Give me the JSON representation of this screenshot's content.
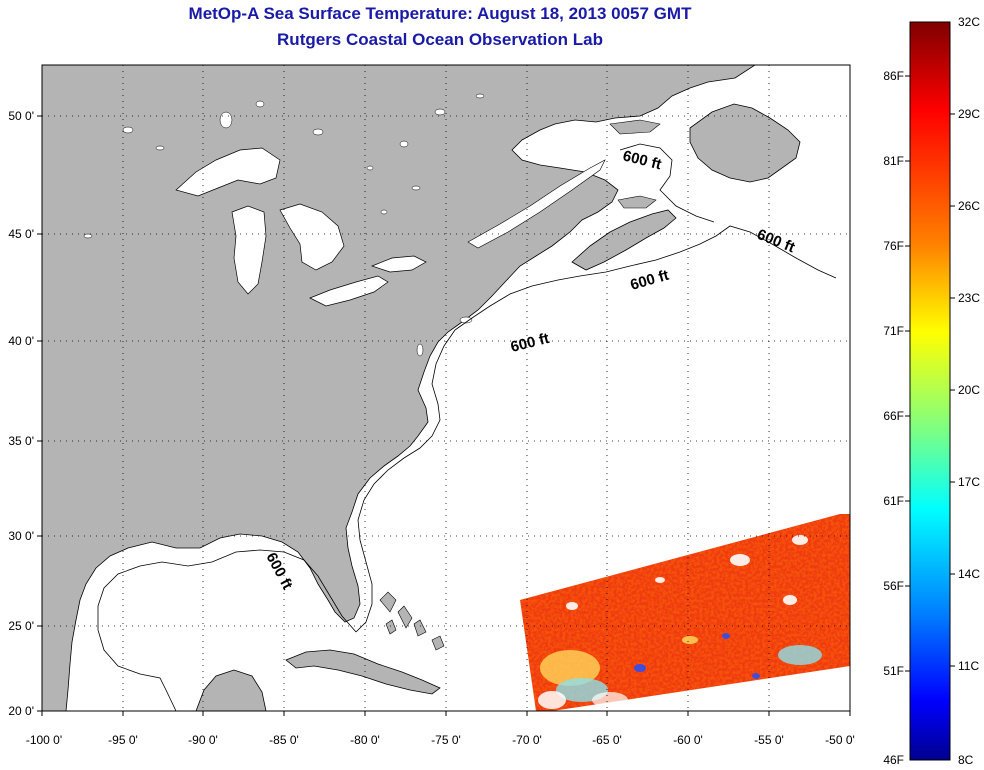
{
  "title": {
    "line1": "MetOp-A Sea Surface Temperature:  August 18, 2013 0057 GMT",
    "line2": "Rutgers Coastal Ocean Observation Lab"
  },
  "map": {
    "lon_range": [
      -100,
      -50
    ],
    "lat_range": [
      20,
      52.5
    ],
    "x_ticks": [
      "-100 0'",
      "-95 0'",
      "-90 0'",
      "-85 0'",
      "-80 0'",
      "-75 0'",
      "-70 0'",
      "-65 0'",
      "-60 0'",
      "-55 0'",
      "-50 0'"
    ],
    "y_ticks": [
      "50 0'",
      "45 0'",
      "40 0'",
      "35 0'",
      "30 0'",
      "25 0'",
      "20 0'"
    ],
    "land_color": "#b4b4b4",
    "ocean_color": "#ffffff",
    "grid": "dotted",
    "depth_contour_label": "600 ft",
    "depth_labels": [
      "600 ft",
      "600 ft",
      "600 ft",
      "600 ft",
      "600 ft"
    ]
  },
  "colorbar": {
    "celsius_labels": [
      "32C",
      "29C",
      "26C",
      "23C",
      "20C",
      "17C",
      "14C",
      "11C",
      "8C"
    ],
    "fahrenheit_labels": [
      "86F",
      "81F",
      "76F",
      "71F",
      "66F",
      "61F",
      "56F",
      "51F",
      "46F"
    ],
    "colors": [
      "#7f0000",
      "#ff0000",
      "#ff8000",
      "#ffff00",
      "#80ff80",
      "#00ffff",
      "#0080ff",
      "#0000ff",
      "#00008f"
    ]
  }
}
